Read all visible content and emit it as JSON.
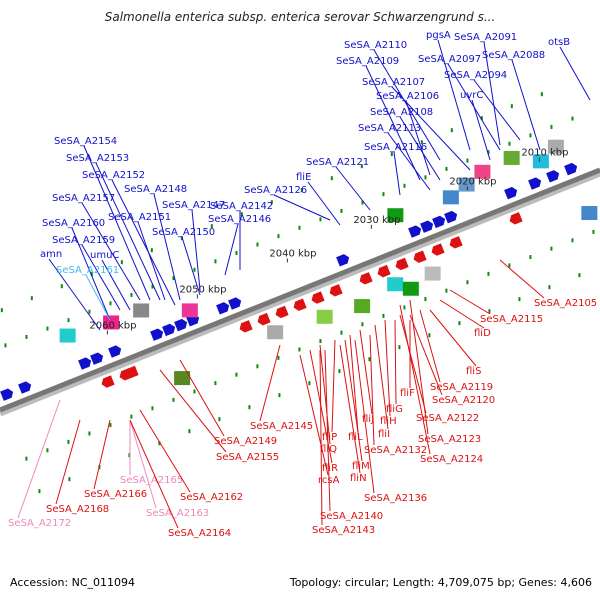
{
  "title": "Salmonella enterica subsp. enterica serovar Schwarzengrund s...",
  "footer": {
    "accession": "Accession: NC_011094",
    "topology": "Topology: circular; Length: 4,709,075 bp; Genes: 4,606"
  },
  "colors": {
    "forward": "#1111cc",
    "reverse": "#dd1111",
    "highlight": "#44bbee",
    "pink": "#ee88bb",
    "backbone": "#777777"
  },
  "ticks": [
    "2010 kbp",
    "2020 kbp",
    "2030 kbp",
    "2040 kbp",
    "2050 kbp",
    "2060 kbp"
  ],
  "forward_labels": [
    "SeSA_A2110",
    "pgsA",
    "SeSA_A2091",
    "SeSA_A2109",
    "SeSA_A2097",
    "SeSA_A2088",
    "otsB",
    "SeSA_A2107",
    "SeSA_A2094",
    "SeSA_A2106",
    "uvrC",
    "SeSA_A2108",
    "SeSA_A2113",
    "SeSA_A2116",
    "SeSA_A2121",
    "fliE",
    "SeSA_A2126",
    "SeSA_A2154",
    "SeSA_A2153",
    "SeSA_A2152",
    "SeSA_A2148",
    "SeSA_A2157",
    "SeSA_A2147",
    "SeSA_A2142",
    "SeSA_A2151",
    "SeSA_A2146",
    "SeSA_A2160",
    "SeSA_A2150",
    "SeSA_A2159",
    "amn",
    "umuC",
    "SeSA_A2161"
  ],
  "reverse_labels": [
    "SeSA_A2105",
    "SeSA_A2115",
    "fliD",
    "fliS",
    "SeSA_A2119",
    "fliF",
    "SeSA_A2120",
    "fliG",
    "SeSA_A2122",
    "fliH",
    "fliI",
    "fliJ",
    "fliL",
    "SeSA_A2145",
    "fliP",
    "SeSA_A2132",
    "SeSA_A2123",
    "SeSA_A2149",
    "fliQ",
    "fliM",
    "SeSA_A2124",
    "SeSA_A2155",
    "fliR",
    "fliN",
    "rcsA",
    "SeSA_A2165",
    "SeSA_A2136",
    "SeSA_A2166",
    "SeSA_A2162",
    "SeSA_A2168",
    "SeSA_A2163",
    "SeSA_A2140",
    "SeSA_A2172",
    "SeSA_A2164",
    "SeSA_A2143"
  ]
}
